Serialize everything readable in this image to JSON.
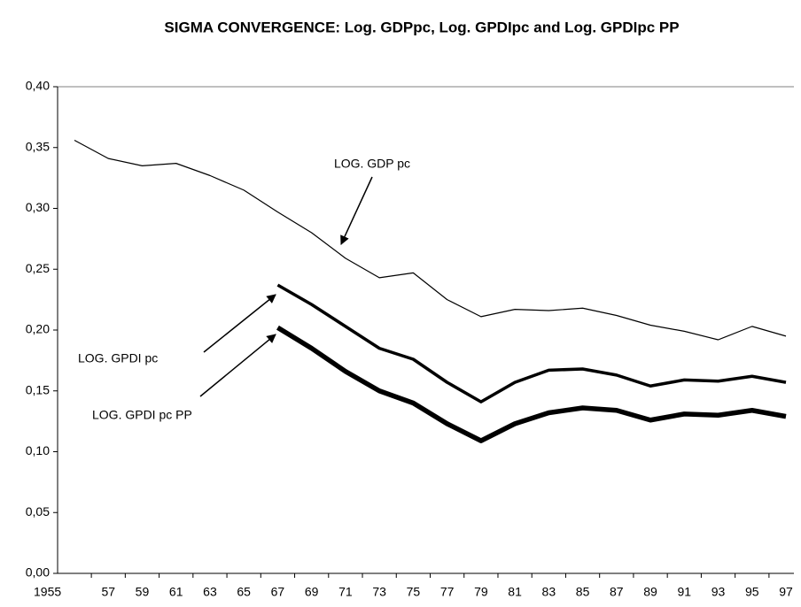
{
  "chart_data": {
    "type": "line",
    "title": "SIGMA CONVERGENCE: Log. GDPpc, Log. GPDIpc and Log. GPDIpc PP",
    "categories": [
      "1955",
      "57",
      "59",
      "61",
      "63",
      "65",
      "67",
      "69",
      "71",
      "73",
      "75",
      "77",
      "79",
      "81",
      "83",
      "85",
      "87",
      "89",
      "91",
      "93",
      "95",
      "97"
    ],
    "series": [
      {
        "name": "LOG. GDP pc",
        "color": "#000000",
        "values": [
          0.356,
          0.341,
          0.335,
          0.337,
          0.327,
          0.315,
          0.297,
          0.28,
          0.259,
          0.243,
          0.247,
          0.225,
          0.211,
          0.217,
          0.216,
          0.218,
          0.212,
          0.204,
          0.199,
          0.192,
          0.203,
          0.195
        ]
      },
      {
        "name": "LOG. GPDI pc",
        "color": "#000000",
        "values": [
          null,
          null,
          null,
          null,
          null,
          null,
          0.237,
          0.221,
          0.203,
          0.185,
          0.176,
          0.157,
          0.141,
          0.157,
          0.167,
          0.168,
          0.163,
          0.154,
          0.159,
          0.158,
          0.162,
          0.157
        ]
      },
      {
        "name": "LOG. GPDI pc PP",
        "color": "#000000",
        "values": [
          null,
          null,
          null,
          null,
          null,
          null,
          0.202,
          0.185,
          0.166,
          0.15,
          0.14,
          0.123,
          0.109,
          0.123,
          0.132,
          0.136,
          0.134,
          0.126,
          0.131,
          0.13,
          0.134,
          0.129
        ]
      }
    ],
    "ylim": [
      0,
      0.4
    ],
    "yticks": [
      {
        "value": 0,
        "label": "0,00"
      },
      {
        "value": 0.05,
        "label": "0,05"
      },
      {
        "value": 0.1,
        "label": "0,10"
      },
      {
        "value": 0.15,
        "label": "0,15"
      },
      {
        "value": 0.2,
        "label": "0,20"
      },
      {
        "value": 0.25,
        "label": "0,25"
      },
      {
        "value": 0.3,
        "label": "0,30"
      },
      {
        "value": 0.35,
        "label": "0,35"
      },
      {
        "value": 0.4,
        "label": "0,40"
      }
    ],
    "grid": false
  }
}
